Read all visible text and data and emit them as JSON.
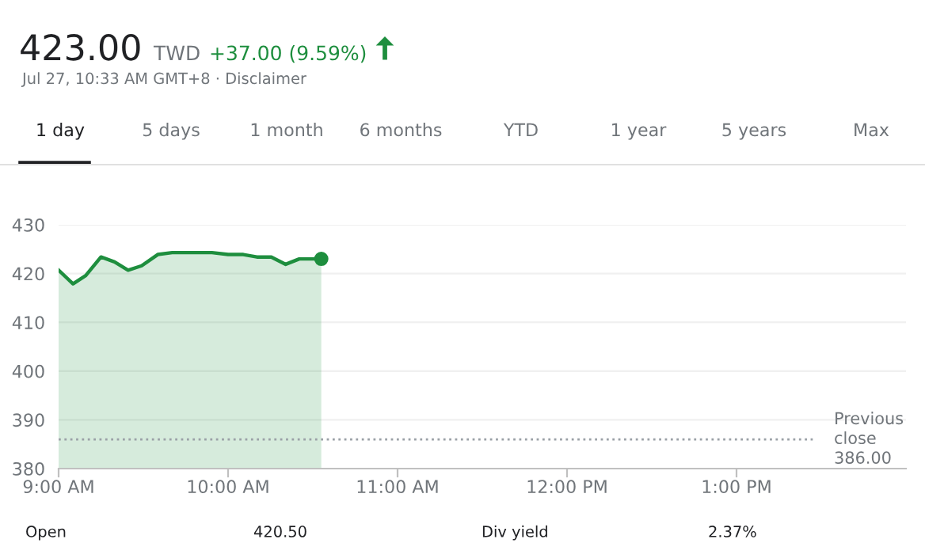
{
  "chart_data": {
    "type": "area",
    "title": "423.00",
    "annotations": [
      "TWD",
      "+37.00 (9.59%)",
      "Jul 27, 10:33 AM GMT+8 · Disclaimer",
      "1 day",
      "5 days",
      "1 month",
      "6 months",
      "YTD",
      "1 year",
      "5 years",
      "Max",
      "Open",
      "420.50",
      "Div yield",
      "2.37%"
    ],
    "series": [
      {
        "color": "#1e8e3e",
        "x": [
          9.0,
          9.085,
          9.16,
          9.25,
          9.33,
          9.41,
          9.49,
          9.585,
          9.67,
          9.905,
          10.0,
          10.09,
          10.17,
          10.255,
          10.34,
          10.42,
          10.55
        ],
        "values": [
          420.7,
          417.9,
          419.6,
          423.4,
          422.4,
          420.7,
          421.6,
          423.9,
          424.3,
          424.3,
          423.9,
          423.9,
          423.4,
          423.4,
          421.9,
          423.0,
          423.0
        ]
      },
      {
        "type": "scatter",
        "color": "#1e8e3e",
        "x": [
          10.55
        ],
        "values": [
          423.0
        ],
        "marker": "circle"
      }
    ],
    "xlim": [
      9,
      14
    ],
    "ylim": [
      380,
      430
    ],
    "xticks": [
      {
        "value": 9,
        "label": "9:00 AM"
      },
      {
        "value": 10,
        "label": "10:00 AM"
      },
      {
        "value": 11,
        "label": "11:00 AM"
      },
      {
        "value": 12,
        "label": "12:00 PM"
      },
      {
        "value": 13,
        "label": "1:00 PM"
      }
    ],
    "yticks": [
      380,
      390,
      400,
      410,
      420,
      430
    ],
    "ref_lines": [
      {
        "axis": "y",
        "value": 386,
        "label": "Previous\nclose\n386.00",
        "color": "#9aa0a6",
        "line_style": "dotted"
      }
    ],
    "grid": "y",
    "marker": "none"
  }
}
